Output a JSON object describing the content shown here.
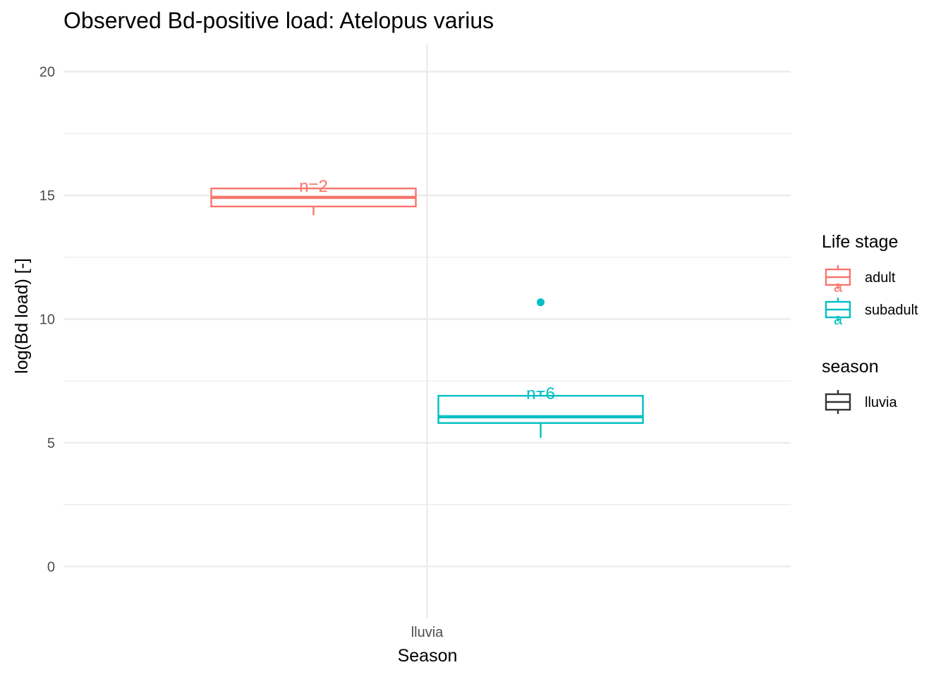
{
  "chart_data": {
    "type": "boxplot",
    "title": "Observed Bd-positive load: Atelopus varius",
    "xlabel": "Season",
    "ylabel": "log(Bd load) [-]",
    "ylim": [
      -2.1,
      21.1
    ],
    "y_ticks": [
      0,
      5,
      10,
      15,
      20
    ],
    "y_tick_labels": [
      "0",
      "5",
      "10",
      "15",
      "20"
    ],
    "categories": [
      "lluvia"
    ],
    "grid": true,
    "legend_position": "right",
    "series": [
      {
        "name": "adult",
        "color": "#F8766D",
        "category": "lluvia",
        "n_label": "n=2",
        "letter": "a",
        "min": 14.2,
        "q1": 14.55,
        "median": 14.92,
        "q3": 15.28,
        "max": 15.3,
        "outliers": []
      },
      {
        "name": "subadult",
        "color": "#00BFC4",
        "category": "lluvia",
        "n_label": "n=6",
        "letter": "a",
        "min": 5.2,
        "q1": 5.8,
        "median": 6.05,
        "q3": 6.9,
        "max": 7.1,
        "outliers": [
          10.68
        ]
      }
    ],
    "legends": [
      {
        "title": "Life stage",
        "entries": [
          {
            "label": "adult",
            "color": "#F8766D"
          },
          {
            "label": "subadult",
            "color": "#00BFC4"
          }
        ]
      },
      {
        "title": "season",
        "entries": [
          {
            "label": "lluvia",
            "color": "#333333"
          }
        ]
      }
    ]
  }
}
